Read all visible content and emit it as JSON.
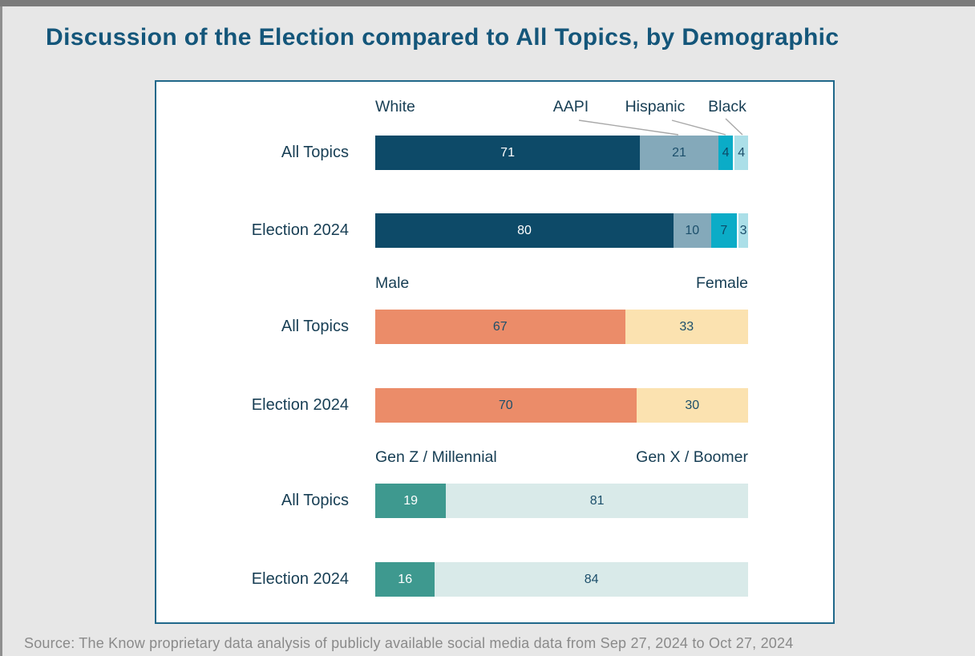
{
  "page": {
    "title": "Discussion of the Election compared to All Topics, by Demographic",
    "source_note": "Source: The Know proprietary data analysis of publicly available social media data from Sep 27, 2024 to Oct 27, 2024"
  },
  "colors": {
    "background": "#E7E7E7",
    "panel_background": "#FFFFFF",
    "panel_border": "#20688A",
    "title_text": "#14567A",
    "label_text": "#173E54",
    "value_text_dark": "#1C4F6B",
    "value_text_light": "#FFFFFF",
    "source_text": "#8A8A8A",
    "leader_line": "#A8A8A8",
    "segment_divider": "#FFFFFF"
  },
  "chart_data": {
    "type": "bar",
    "orientation": "horizontal",
    "stacked": true,
    "unit": "percent",
    "axis_range": [
      0,
      100
    ],
    "grid": false,
    "title": "Discussion of the Election compared to All Topics, by Demographic",
    "groups": [
      {
        "id": "race",
        "header_style": "callout",
        "categories": [
          "White",
          "AAPI",
          "Hispanic",
          "Black"
        ],
        "segment_colors": [
          "#0D4A68",
          "#84A9BA",
          "#0BACC7",
          "#ABDFE8"
        ],
        "value_text_colors": [
          "#FFFFFF",
          "#1C4F6B",
          "#0D4A68",
          "#1C4F6B"
        ],
        "divider_before_last": true,
        "rows": [
          {
            "label": "All Topics",
            "values": [
              71,
              21,
              4,
              4
            ]
          },
          {
            "label": "Election 2024",
            "values": [
              80,
              10,
              7,
              3
            ]
          }
        ]
      },
      {
        "id": "gender",
        "header_style": "ends",
        "categories": [
          "Male",
          "Female"
        ],
        "segment_colors": [
          "#EB8C69",
          "#FBE2B0"
        ],
        "value_text_colors": [
          "#1C4F6B",
          "#1C4F6B"
        ],
        "divider_before_last": false,
        "rows": [
          {
            "label": "All Topics",
            "values": [
              67,
              33
            ]
          },
          {
            "label": "Election 2024",
            "values": [
              70,
              30
            ]
          }
        ]
      },
      {
        "id": "generation",
        "header_style": "ends",
        "categories": [
          "Gen Z / Millennial",
          "Gen X / Boomer"
        ],
        "segment_colors": [
          "#3E998F",
          "#D9EAE9"
        ],
        "value_text_colors": [
          "#FFFFFF",
          "#1C4F6B"
        ],
        "divider_before_last": false,
        "rows": [
          {
            "label": "All Topics",
            "values": [
              19,
              81
            ]
          },
          {
            "label": "Election 2024",
            "values": [
              16,
              84
            ]
          }
        ]
      }
    ]
  }
}
